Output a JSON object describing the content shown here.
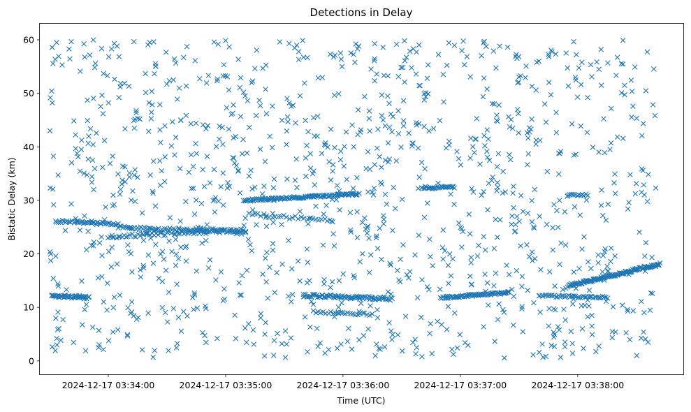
{
  "chart_data": {
    "type": "scatter",
    "title": "Detections in Delay",
    "xlabel": "Time (UTC)",
    "ylabel": "Bistatic Delay (km)",
    "x_ticks": [
      "2024-12-17 03:34:00",
      "2024-12-17 03:35:00",
      "2024-12-17 03:36:00",
      "2024-12-17 03:37:00",
      "2024-12-17 03:38:00"
    ],
    "y_ticks": [
      0,
      10,
      20,
      30,
      40,
      50,
      60
    ],
    "xlim": [
      "2024-12-17 03:33:25",
      "2024-12-17 03:38:54"
    ],
    "ylim": [
      -2.5,
      63
    ],
    "marker": "x",
    "grid": false,
    "legend": "none",
    "marker_color": "#1f77b4",
    "noise_seed": 7,
    "noise_count": 1150,
    "noise_range": {
      "x": [
        "2024-12-17 03:33:30",
        "2024-12-17 03:38:40"
      ],
      "y": [
        0.5,
        60
      ]
    },
    "tracks": [
      {
        "start": "2024-12-17 03:33:31",
        "end": "2024-12-17 03:33:50",
        "y_start": 12.2,
        "y_end": 11.8,
        "n": 45,
        "jitter": 0.25
      },
      {
        "start": "2024-12-17 03:33:33",
        "end": "2024-12-17 03:34:05",
        "y_start": 26.1,
        "y_end": 25.6,
        "n": 45,
        "jitter": 0.2
      },
      {
        "start": "2024-12-17 03:34:05",
        "end": "2024-12-17 03:34:50",
        "y_start": 25.0,
        "y_end": 24.2,
        "n": 55,
        "jitter": 0.3
      },
      {
        "start": "2024-12-17 03:34:00",
        "end": "2024-12-17 03:35:10",
        "y_start": 23.2,
        "y_end": 24.5,
        "n": 70,
        "jitter": 0.35
      },
      {
        "start": "2024-12-17 03:34:45",
        "end": "2024-12-17 03:35:10",
        "y_start": 24.8,
        "y_end": 23.8,
        "n": 30,
        "jitter": 0.3
      },
      {
        "start": "2024-12-17 03:35:10",
        "end": "2024-12-17 03:36:08",
        "y_start": 30.0,
        "y_end": 31.2,
        "n": 120,
        "jitter": 0.2
      },
      {
        "start": "2024-12-17 03:35:12",
        "end": "2024-12-17 03:35:55",
        "y_start": 27.4,
        "y_end": 26.2,
        "n": 30,
        "jitter": 0.3
      },
      {
        "start": "2024-12-17 03:35:40",
        "end": "2024-12-17 03:36:25",
        "y_start": 12.2,
        "y_end": 11.6,
        "n": 85,
        "jitter": 0.3
      },
      {
        "start": "2024-12-17 03:35:45",
        "end": "2024-12-17 03:36:15",
        "y_start": 9.2,
        "y_end": 8.7,
        "n": 25,
        "jitter": 0.25
      },
      {
        "start": "2024-12-17 03:36:40",
        "end": "2024-12-17 03:36:57",
        "y_start": 32.4,
        "y_end": 32.4,
        "n": 30,
        "jitter": 0.2
      },
      {
        "start": "2024-12-17 03:36:50",
        "end": "2024-12-17 03:37:25",
        "y_start": 11.8,
        "y_end": 12.8,
        "n": 75,
        "jitter": 0.2
      },
      {
        "start": "2024-12-17 03:37:40",
        "end": "2024-12-17 03:38:15",
        "y_start": 12.2,
        "y_end": 11.9,
        "n": 45,
        "jitter": 0.2
      },
      {
        "start": "2024-12-17 03:37:55",
        "end": "2024-12-17 03:38:42",
        "y_start": 14.0,
        "y_end": 18.1,
        "n": 130,
        "jitter": 0.25
      },
      {
        "start": "2024-12-17 03:37:55",
        "end": "2024-12-17 03:38:05",
        "y_start": 31.0,
        "y_end": 31.0,
        "n": 12,
        "jitter": 0.2
      }
    ]
  }
}
